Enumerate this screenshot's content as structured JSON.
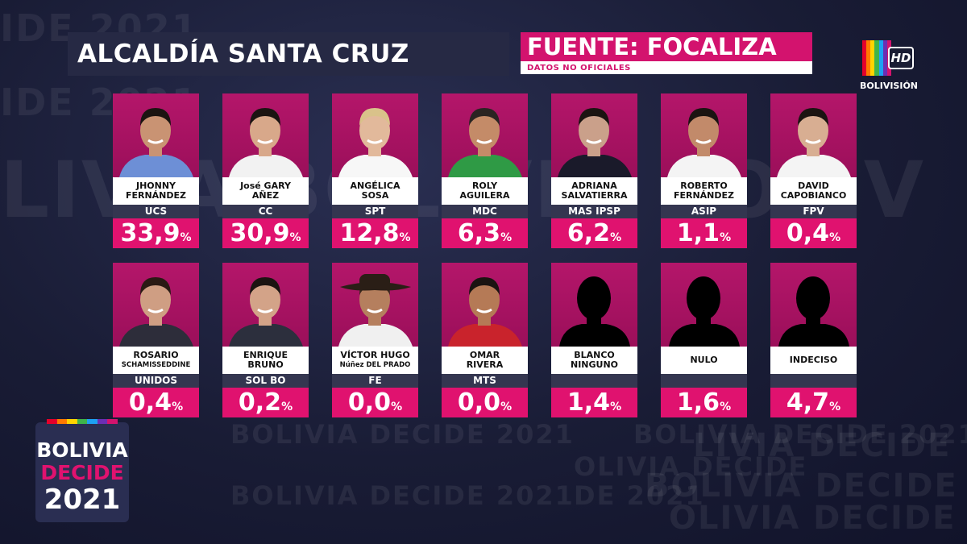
{
  "header": {
    "title": "ALCALDÍA SANTA CRUZ",
    "source": "FUENTE: FOCALIZA",
    "source_note": "DATOS NO OFICIALES"
  },
  "channel": {
    "badge": "HD",
    "brand": "BOLIVISIÓN"
  },
  "event_logo": {
    "line1": "BOLIVIA",
    "line2": "DECIDE",
    "line3": "2021"
  },
  "background_text": [
    "BOLIVIA DECIDE 2021",
    "LIVIA DECIDE",
    "BOLIVIA DECIDE 20",
    "OLIVIA DECIDE",
    "DE 2021",
    "IDE 2021",
    "LIVIA BOLIVIA BOLIV",
    "IA DECIDE 2021"
  ],
  "percent_symbol": "%",
  "candidates": [
    {
      "name1": "JHONNY",
      "name2": "FERNÁNDEZ",
      "party": "UCS",
      "value": "33,9"
    },
    {
      "name1": "José GARY",
      "name2": "AÑEZ",
      "party": "CC",
      "value": "30,9"
    },
    {
      "name1": "ANGÉLICA",
      "name2": "SOSA",
      "party": "SPT",
      "value": "12,8"
    },
    {
      "name1": "ROLY",
      "name2": "AGUILERA",
      "party": "MDC",
      "value": "6,3"
    },
    {
      "name1": "ADRIANA",
      "name2": "SALVATIERRA",
      "party": "MAS IPSP",
      "value": "6,2"
    },
    {
      "name1": "ROBERTO",
      "name2": "FERNÁNDEZ",
      "party": "ASIP",
      "value": "1,1"
    },
    {
      "name1": "DAVID",
      "name2": "CAPOBIANCO",
      "party": "FPV",
      "value": "0,4"
    },
    {
      "name1": "ROSARIO",
      "name2": "SCHAMISSEDDINE",
      "party": "UNIDOS",
      "value": "0,4"
    },
    {
      "name1": "ENRIQUE",
      "name2": "BRUNO",
      "party": "SOL BO",
      "value": "0,2"
    },
    {
      "name1": "VÍCTOR HUGO",
      "name2": "Núñez DEL PRADO",
      "party": "FE",
      "value": "0,0"
    },
    {
      "name1": "OMAR",
      "name2": "RIVERA",
      "party": "MTS",
      "value": "0,0"
    },
    {
      "name1": "BLANCO",
      "name2": "NINGUNO",
      "party": "",
      "value": "1,4"
    },
    {
      "name1": "NULO",
      "name2": "",
      "party": "",
      "value": "1,6"
    },
    {
      "name1": "INDECISO",
      "name2": "",
      "party": "",
      "value": "4,7"
    }
  ],
  "colors": {
    "accent": "#e0126f",
    "photo_bg": "#a8135f",
    "party_bar": "#343650",
    "title_bar": "#262944"
  }
}
